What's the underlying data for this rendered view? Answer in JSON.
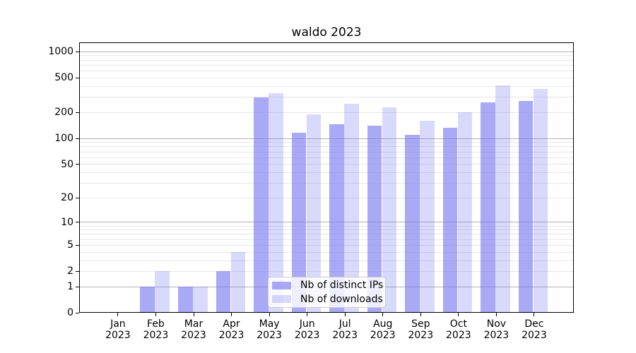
{
  "chart_data": {
    "type": "bar",
    "title": "waldo 2023",
    "x_categories": [
      "Jan 2023",
      "Feb 2023",
      "Mar 2023",
      "Apr 2023",
      "May 2023",
      "Jun 2023",
      "Jul 2023",
      "Aug 2023",
      "Sep 2023",
      "Oct 2023",
      "Nov 2023",
      "Dec 2023"
    ],
    "x_tick_line1": [
      "Jan",
      "Feb",
      "Mar",
      "Apr",
      "May",
      "Jun",
      "Jul",
      "Aug",
      "Sep",
      "Oct",
      "Nov",
      "Dec"
    ],
    "x_tick_line2": "2023",
    "series": [
      {
        "name": "Nb of distinct IPs",
        "color_hex": "#7878f0",
        "alpha": 0.64,
        "values": [
          0,
          1,
          1,
          2,
          298,
          117,
          146,
          141,
          111,
          133,
          263,
          270
        ]
      },
      {
        "name": "Nb of downloads",
        "color_hex": "#7878f0",
        "alpha": 0.28,
        "values": [
          0,
          2,
          1,
          4,
          335,
          190,
          250,
          228,
          160,
          201,
          412,
          373
        ]
      }
    ],
    "y_axis": {
      "scale": "log10(1+v)",
      "tick_values": [
        0,
        1,
        2,
        5,
        10,
        20,
        50,
        100,
        200,
        500,
        1000
      ],
      "tick_labels": [
        "0",
        "1",
        "2",
        "5",
        "10",
        "20",
        "50",
        "100",
        "200",
        "500",
        "1000"
      ],
      "ylim": [
        0,
        1280
      ]
    },
    "grid": {
      "major_values": [
        1,
        10,
        100,
        1000
      ],
      "minor_values": [
        2,
        3,
        4,
        5,
        6,
        7,
        8,
        9,
        20,
        30,
        40,
        50,
        60,
        70,
        80,
        90,
        200,
        300,
        400,
        500,
        600,
        700,
        800,
        900
      ],
      "major_color": "#b0b0b0",
      "minor_color": "#e7e7e7"
    },
    "legend": {
      "location": "lower center",
      "entries": [
        "Nb of distinct IPs",
        "Nb of downloads"
      ]
    }
  }
}
